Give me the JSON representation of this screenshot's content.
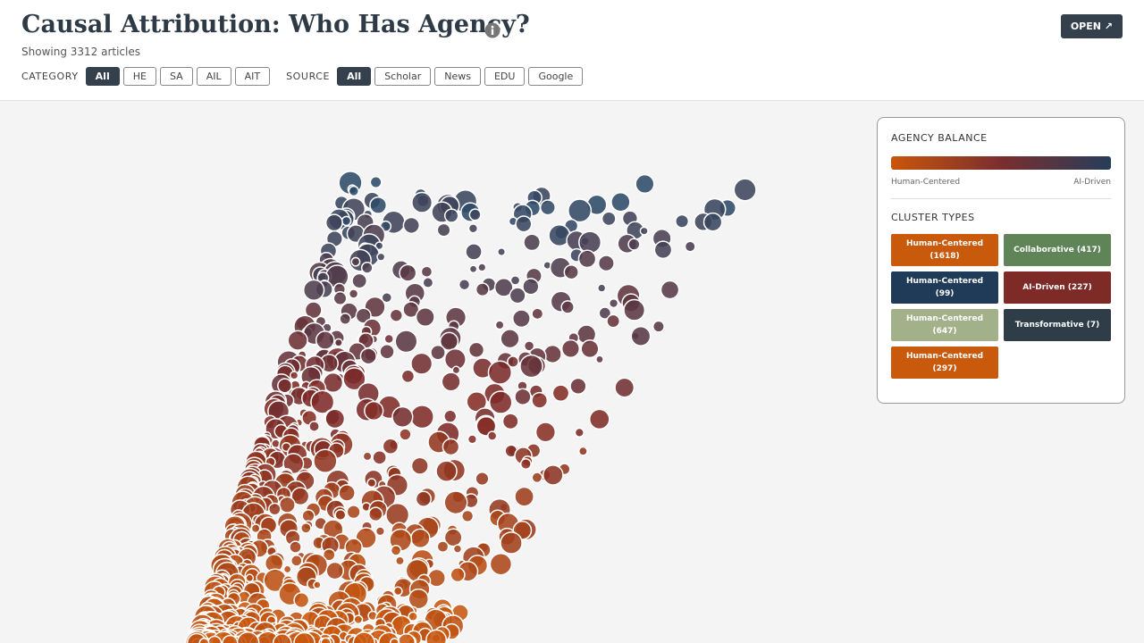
{
  "header": {
    "title": "Causal Attribution: Who Has Agency?",
    "subtitle": "Showing 3312 articles",
    "open_button": "OPEN ↗"
  },
  "filters": [
    {
      "label": "CATEGORY",
      "options": [
        "All",
        "HE",
        "SA",
        "AIL",
        "AIT"
      ],
      "active": 0
    },
    {
      "label": "SOURCE",
      "options": [
        "All",
        "Scholar",
        "News",
        "EDU",
        "Google"
      ],
      "active": 0
    }
  ],
  "legend": {
    "balance_heading": "AGENCY BALANCE",
    "gradient_colors": [
      "#c9560c",
      "#7a2e2e",
      "#263d5a"
    ],
    "gradient_labels": [
      "Human-Centered",
      "AI-Driven"
    ],
    "cluster_heading": "CLUSTER TYPES",
    "clusters": [
      {
        "label": "Human-Centered (1618)",
        "color": "#c95a0c"
      },
      {
        "label": "Collaborative (417)",
        "color": "#5e8458"
      },
      {
        "label": "Human-Centered (99)",
        "color": "#1f3b58"
      },
      {
        "label": "AI-Driven (227)",
        "color": "#7e2b28"
      },
      {
        "label": "Human-Centered (647)",
        "color": "#a3b18a"
      },
      {
        "label": "Transformative (7)",
        "color": "#2f3d49"
      },
      {
        "label": "Human-Centered (297)",
        "color": "#c95a0c"
      }
    ]
  }
}
